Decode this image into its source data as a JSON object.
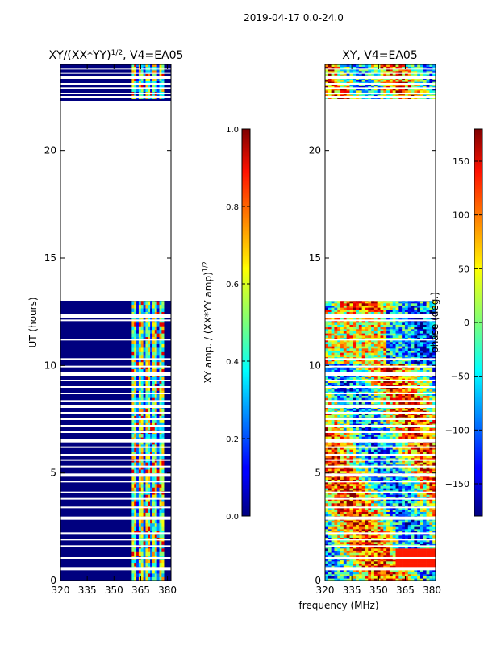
{
  "chart_data": {
    "type": "heatmap",
    "suptitle": "2019-04-17 0.0-24.0",
    "xlabel_shared": "frequency (MHz)",
    "panels": [
      {
        "id": "amp",
        "title": "XY/(XX*YY)",
        "title_sup": "1/2",
        "title_suffix": ", V4=EA05",
        "ylabel": "UT (hours)",
        "xlim": [
          320,
          382
        ],
        "ylim": [
          0,
          24
        ],
        "xticks": [
          320,
          335,
          350,
          365,
          380
        ],
        "yticks": [
          0,
          5,
          10,
          15,
          20
        ],
        "colormap": "jet",
        "colorbar": {
          "label": "XY amp. / (XX*YY amp)",
          "label_sup": "1/2",
          "range": [
            0.0,
            1.0
          ],
          "ticks": [
            "0.0",
            "0.2",
            "0.4",
            "0.6",
            "0.8",
            "1.0"
          ]
        },
        "data_bands_ut": [
          [
            0.0,
            13.0
          ],
          [
            22.4,
            24.0
          ]
        ],
        "gap_ut": [
          13.0,
          22.4
        ],
        "active_freq_mhz": [
          360,
          378
        ]
      },
      {
        "id": "phase",
        "title": "XY, V4=EA05",
        "ylabel": "",
        "xlim": [
          320,
          382
        ],
        "ylim": [
          0,
          24
        ],
        "xticks": [
          320,
          335,
          350,
          365,
          380
        ],
        "yticks": [
          0,
          5,
          10,
          15,
          20
        ],
        "colormap": "jet",
        "colorbar": {
          "label": "phase (deg.)",
          "range": [
            -180,
            180
          ],
          "ticks": [
            "−150",
            "−100",
            "−50",
            "0",
            "50",
            "100",
            "150"
          ]
        },
        "data_bands_ut": [
          [
            0.0,
            13.0
          ],
          [
            22.4,
            24.0
          ]
        ],
        "gap_ut": [
          13.0,
          22.4
        ]
      }
    ]
  }
}
